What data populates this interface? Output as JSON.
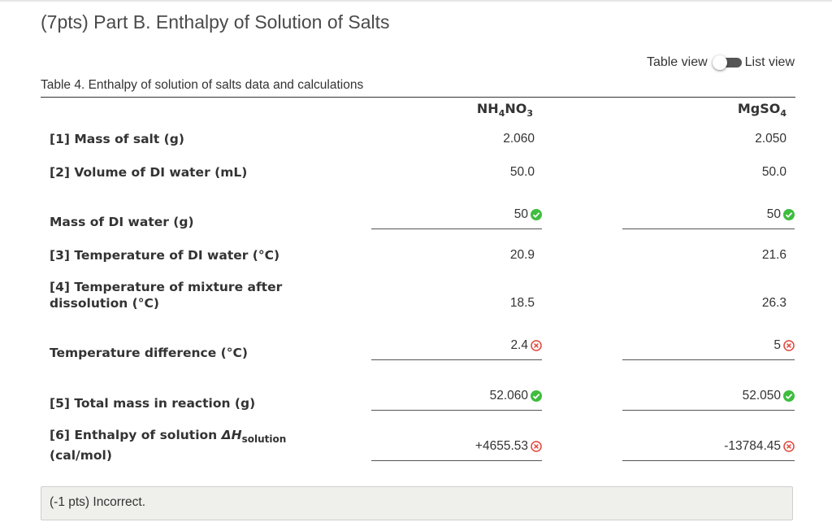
{
  "title": "(7pts) Part B. Enthalpy of Solution of Salts",
  "view_toggle": {
    "left_label": "Table view",
    "right_label": "List view"
  },
  "caption": "Table 4. Enthalpy of solution of salts data and calculations",
  "columns": [
    {
      "base1": "NH",
      "sub1": "4",
      "base2": "NO",
      "sub2": "3"
    },
    {
      "base1": "MgSO",
      "sub1": "4",
      "base2": "",
      "sub2": ""
    }
  ],
  "rows": {
    "mass_salt": {
      "label": "[1] Mass of salt (g)",
      "v1": "2.060",
      "v2": "2.050"
    },
    "volume_water": {
      "label": "[2] Volume of DI water (mL)",
      "v1": "50.0",
      "v2": "50.0"
    },
    "mass_water": {
      "label": "Mass of DI water (g)",
      "v1": "50",
      "v2": "50"
    },
    "temp_water": {
      "label": "[3] Temperature of DI water (°C)",
      "v1": "20.9",
      "v2": "21.6"
    },
    "temp_mix": {
      "label_line1": "[4] Temperature of mixture after",
      "label_line2": "dissolution (°C)",
      "v1": "18.5",
      "v2": "26.3"
    },
    "temp_diff": {
      "label": "Temperature difference (°C)",
      "v1": "2.4",
      "v2": "5"
    },
    "total_mass": {
      "label": "[5] Total mass in reaction (g)",
      "v1": "52.060",
      "v2": "52.050"
    },
    "enthalpy": {
      "label_prefix": "[6] Enthalpy of solution ",
      "label_symbol": "ΔH",
      "label_sub": "solution",
      "label_line2": "(cal/mol)",
      "v1": "+4655.53",
      "v2": "-13784.45"
    }
  },
  "feedback": "(-1 pts) Incorrect.",
  "colors": {
    "correct": "#3ebd3e",
    "incorrect": "#e0453a",
    "border": "#cfcfcf"
  },
  "icons": {
    "correct": "check-circle-icon",
    "incorrect": "x-circle-icon"
  }
}
